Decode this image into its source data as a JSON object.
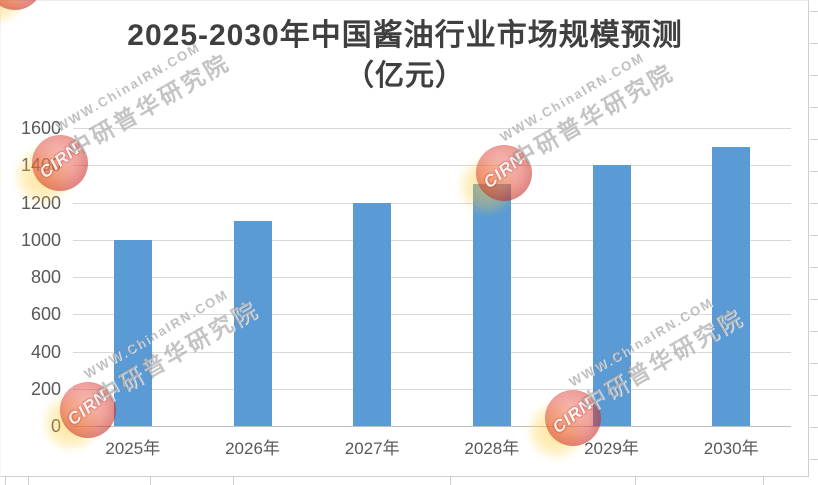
{
  "chart_data": {
    "type": "bar",
    "title": "2025-2030年中国酱油行业市场规模预测",
    "subtitle": "（亿元）",
    "categories": [
      "2025年",
      "2026年",
      "2027年",
      "2028年",
      "2029年",
      "2030年"
    ],
    "values": [
      1000,
      1100,
      1200,
      1300,
      1400,
      1500
    ],
    "xlabel": "",
    "ylabel": "",
    "ylim": [
      0,
      1600
    ],
    "yticks": [
      0,
      200,
      400,
      600,
      800,
      1000,
      1200,
      1400,
      1600
    ],
    "grid": "horizontal gridlines on",
    "legend": "none",
    "bar_color": "#5B9BD5",
    "gridline_color": "#D9D9D9",
    "axis_line_color": "#BFBFBF",
    "axis_text_color": "#595959",
    "title_color": "#3F3F3F"
  },
  "watermark": {
    "logo_text": "CIRN",
    "line1": "WWW.ChinaIRN.COM",
    "line2": "中研普华研究院",
    "logo_color": "#D93025",
    "glow_color": "#FFCD3C",
    "text_color": "#8A8A8A"
  }
}
